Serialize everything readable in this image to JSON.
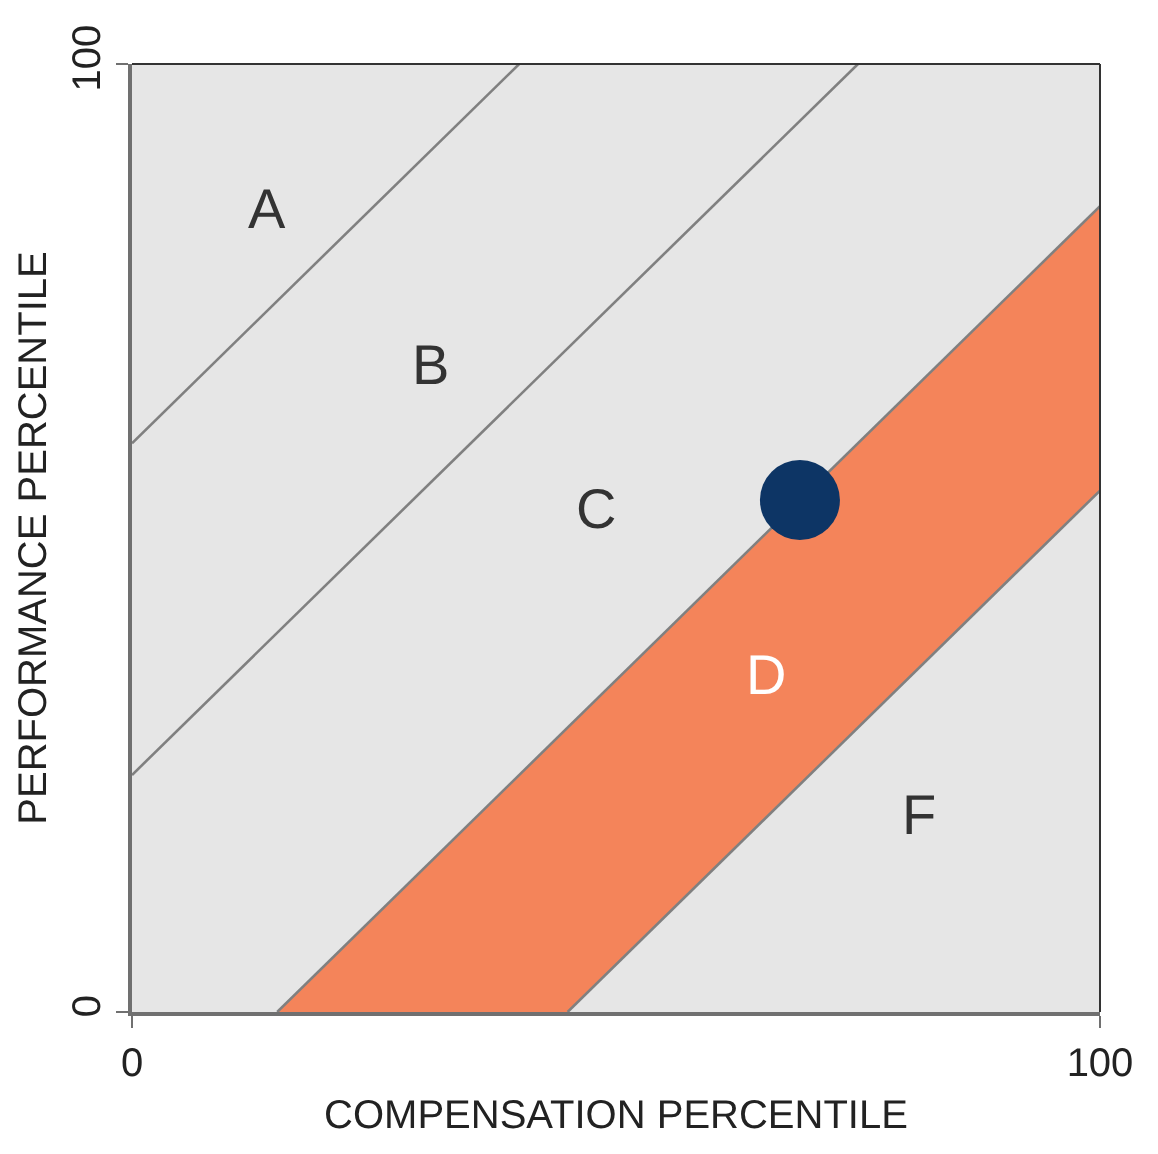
{
  "chart_data": {
    "type": "scatter",
    "xlabel": "COMPENSATION PERCENTILE",
    "ylabel": "PERFORMANCE PERCENTILE",
    "xlim": [
      0,
      100
    ],
    "ylim": [
      0,
      100
    ],
    "xticks": [
      0,
      100
    ],
    "yticks": [
      0,
      100
    ],
    "series": [
      {
        "type": "line",
        "color": "#808080",
        "x": [
          0,
          40
        ],
        "values": [
          60,
          100
        ]
      },
      {
        "type": "line",
        "color": "#808080",
        "x": [
          0,
          75
        ],
        "values": [
          25,
          100
        ]
      },
      {
        "type": "area",
        "color": "#f4845a",
        "x": [
          15,
          100
        ],
        "values": [
          0,
          85
        ]
      },
      {
        "type": "area",
        "color": "#e6e6e6",
        "x": [
          45,
          100
        ],
        "values": [
          0,
          55
        ]
      },
      {
        "color": "#0d3565",
        "marker": "circle",
        "x": [
          69
        ],
        "values": [
          54
        ]
      }
    ],
    "annotations": [
      "A",
      "B",
      "C",
      "D",
      "F"
    ]
  }
}
